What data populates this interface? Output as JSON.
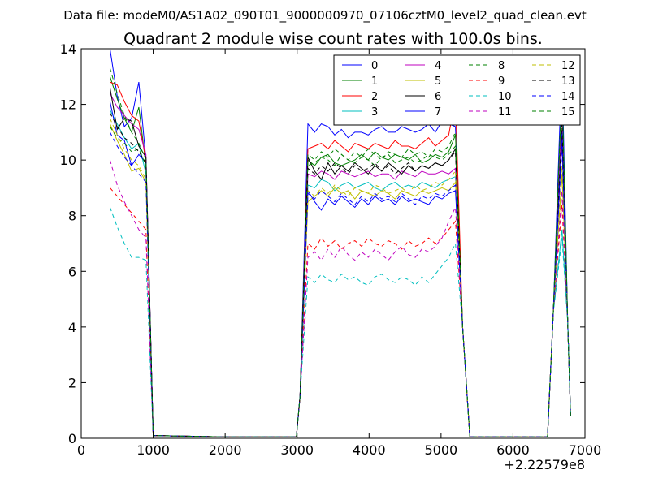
{
  "header": {
    "data_file": "Data file: modeM0/AS1A02_090T01_9000000970_07106cztM0_level2_quad_clean.evt"
  },
  "chart_data": {
    "type": "line",
    "title": "Quadrant 2 module wise count rates with 100.0s bins.",
    "xlabel": "",
    "ylabel": "",
    "x_offset_label": "+2.22579e8",
    "xlim": [
      0,
      7000
    ],
    "ylim": [
      0,
      14
    ],
    "xticks": [
      0,
      1000,
      2000,
      3000,
      4000,
      5000,
      6000,
      7000
    ],
    "xtick_labels": [
      "0",
      "1000",
      "2000",
      "3000",
      "4000",
      "5000",
      "6000",
      "7000"
    ],
    "yticks": [
      0,
      2,
      4,
      6,
      8,
      10,
      12,
      14
    ],
    "ytick_labels": [
      "0",
      "2",
      "4",
      "6",
      "8",
      "10",
      "12",
      "14"
    ],
    "grid": false,
    "legend_placement": "top-right",
    "legend_columns": 4,
    "segments": [
      {
        "x_start": 400,
        "count": 6,
        "drop_x": [
          1000
        ]
      },
      {
        "x_start": 3000,
        "count": 23,
        "rise_x": [
          3000
        ]
      },
      {
        "x_start": 5300,
        "count": 2,
        "tail": true
      },
      {
        "x_start": 6500,
        "count": 4
      }
    ],
    "series": [
      {
        "name": "0",
        "color": "#0000ff",
        "dash": "solid",
        "values": [
          [
            400,
            14.0
          ],
          [
            500,
            12.3
          ],
          [
            600,
            11.2
          ],
          [
            700,
            11.5
          ],
          [
            800,
            12.8
          ],
          [
            900,
            10.0
          ],
          [
            1000,
            0.1
          ]
        ],
        "plateau": [
          11.3,
          11.0,
          11.3,
          11.2,
          10.9,
          11.1,
          10.8,
          11.0,
          11.0,
          10.9,
          11.1,
          11.2,
          11.0,
          11.0,
          11.2,
          11.1,
          11.0,
          11.1,
          11.3,
          11.0,
          11.4,
          11.3,
          11.2
        ]
      },
      {
        "name": "1",
        "color": "#008000",
        "dash": "solid",
        "values": [
          [
            400,
            13.0
          ],
          [
            500,
            12.2
          ],
          [
            600,
            11.5
          ],
          [
            700,
            11.0
          ],
          [
            800,
            11.9
          ],
          [
            900,
            9.8
          ],
          [
            1000,
            0.1
          ]
        ],
        "plateau": [
          10.0,
          9.8,
          10.1,
          10.2,
          9.9,
          9.8,
          9.9,
          10.0,
          10.2,
          10.0,
          10.3,
          10.1,
          10.0,
          10.2,
          10.1,
          10.0,
          10.2,
          9.9,
          10.0,
          10.2,
          10.1,
          10.3,
          10.9
        ]
      },
      {
        "name": "2",
        "color": "#ff0000",
        "dash": "solid",
        "values": [
          [
            400,
            12.8
          ],
          [
            500,
            12.7
          ],
          [
            600,
            12.1
          ],
          [
            700,
            11.6
          ],
          [
            800,
            11.4
          ],
          [
            900,
            10.0
          ],
          [
            1000,
            0.1
          ]
        ],
        "plateau": [
          10.4,
          10.5,
          10.6,
          10.4,
          10.7,
          10.5,
          10.3,
          10.6,
          10.5,
          10.4,
          10.6,
          10.5,
          10.4,
          10.7,
          10.5,
          10.5,
          10.4,
          10.6,
          10.8,
          10.5,
          10.7,
          10.9,
          12.2
        ]
      },
      {
        "name": "3",
        "color": "#00bfbf",
        "dash": "solid",
        "values": [
          [
            400,
            11.8
          ],
          [
            500,
            11.3
          ],
          [
            600,
            10.8
          ],
          [
            700,
            10.4
          ],
          [
            800,
            10.6
          ],
          [
            900,
            9.5
          ],
          [
            1000,
            0.1
          ]
        ],
        "plateau": [
          9.1,
          9.0,
          9.3,
          9.2,
          8.9,
          9.1,
          9.2,
          9.0,
          9.1,
          9.2,
          9.0,
          8.9,
          9.1,
          9.2,
          9.0,
          9.1,
          9.0,
          9.2,
          9.1,
          9.0,
          9.2,
          9.3,
          9.4
        ]
      },
      {
        "name": "4",
        "color": "#bf00bf",
        "dash": "solid",
        "values": [
          [
            400,
            12.4
          ],
          [
            500,
            11.9
          ],
          [
            600,
            11.6
          ],
          [
            700,
            11.3
          ],
          [
            800,
            11.1
          ],
          [
            900,
            10.2
          ],
          [
            1000,
            0.1
          ]
        ],
        "plateau": [
          9.5,
          9.4,
          9.6,
          9.5,
          9.3,
          9.6,
          9.5,
          9.4,
          9.5,
          9.6,
          9.4,
          9.5,
          9.5,
          9.3,
          9.6,
          9.5,
          9.4,
          9.6,
          9.5,
          9.5,
          9.6,
          9.5,
          9.7
        ]
      },
      {
        "name": "5",
        "color": "#bfbf00",
        "dash": "solid",
        "values": [
          [
            400,
            11.3
          ],
          [
            500,
            10.7
          ],
          [
            600,
            10.2
          ],
          [
            700,
            9.6
          ],
          [
            800,
            9.7
          ],
          [
            900,
            9.2
          ],
          [
            1000,
            0.1
          ]
        ],
        "plateau": [
          8.5,
          8.7,
          8.9,
          8.7,
          9.0,
          8.8,
          8.9,
          8.6,
          8.9,
          8.8,
          8.7,
          8.9,
          8.8,
          8.6,
          8.9,
          8.8,
          8.7,
          8.9,
          8.8,
          8.9,
          9.0,
          8.9,
          9.2
        ]
      },
      {
        "name": "6",
        "color": "#000000",
        "dash": "solid",
        "values": [
          [
            400,
            12.6
          ],
          [
            500,
            11.1
          ],
          [
            600,
            11.5
          ],
          [
            700,
            11.4
          ],
          [
            800,
            10.5
          ],
          [
            900,
            10.1
          ],
          [
            1000,
            0.1
          ]
        ],
        "plateau": [
          10.1,
          9.6,
          9.3,
          9.9,
          9.5,
          9.8,
          9.6,
          9.9,
          9.7,
          9.5,
          9.8,
          9.6,
          9.9,
          9.7,
          9.5,
          9.8,
          9.6,
          9.8,
          9.7,
          9.9,
          9.8,
          10.0,
          10.4
        ]
      },
      {
        "name": "7",
        "color": "#0000ff",
        "dash": "solid",
        "values": [
          [
            400,
            12.1
          ],
          [
            500,
            10.9
          ],
          [
            600,
            10.7
          ],
          [
            700,
            9.8
          ],
          [
            800,
            10.2
          ],
          [
            900,
            9.9
          ],
          [
            1000,
            0.1
          ]
        ],
        "plateau": [
          8.9,
          8.5,
          8.2,
          8.6,
          8.4,
          8.7,
          8.5,
          8.3,
          8.6,
          8.4,
          8.7,
          8.5,
          8.6,
          8.4,
          8.7,
          8.5,
          8.6,
          8.5,
          8.4,
          8.7,
          8.6,
          8.8,
          8.9
        ]
      },
      {
        "name": "8",
        "color": "#008000",
        "dash": "dashed",
        "values": [
          [
            400,
            11.2
          ],
          [
            500,
            10.8
          ],
          [
            600,
            10.6
          ],
          [
            700,
            10.3
          ],
          [
            800,
            10.4
          ],
          [
            900,
            9.8
          ],
          [
            1000,
            0.1
          ]
        ],
        "plateau": [
          9.8,
          9.9,
          10.1,
          10.0,
          9.8,
          10.2,
          10.0,
          9.9,
          10.1,
          10.0,
          9.8,
          10.1,
          10.2,
          9.9,
          10.0,
          10.1,
          9.9,
          10.0,
          10.2,
          10.1,
          10.0,
          10.2,
          10.5
        ]
      },
      {
        "name": "9",
        "color": "#ff0000",
        "dash": "dashed",
        "values": [
          [
            400,
            9.0
          ],
          [
            500,
            8.7
          ],
          [
            600,
            8.4
          ],
          [
            700,
            8.1
          ],
          [
            800,
            7.8
          ],
          [
            900,
            7.5
          ],
          [
            1000,
            0.1
          ]
        ],
        "plateau": [
          7.0,
          6.8,
          7.2,
          6.9,
          7.1,
          6.8,
          7.0,
          7.1,
          6.9,
          7.2,
          7.0,
          6.9,
          7.1,
          7.0,
          6.8,
          7.1,
          6.9,
          7.0,
          7.2,
          7.0,
          7.2,
          7.5,
          7.8
        ]
      },
      {
        "name": "10",
        "color": "#00bfbf",
        "dash": "dashed",
        "values": [
          [
            400,
            8.3
          ],
          [
            500,
            7.6
          ],
          [
            600,
            7.0
          ],
          [
            700,
            6.5
          ],
          [
            800,
            6.5
          ],
          [
            900,
            6.4
          ],
          [
            1000,
            0.1
          ]
        ],
        "plateau": [
          5.8,
          5.6,
          5.9,
          5.7,
          5.6,
          5.9,
          5.7,
          5.8,
          5.6,
          5.5,
          5.8,
          5.9,
          5.7,
          5.6,
          5.8,
          5.7,
          5.5,
          5.8,
          5.6,
          5.9,
          6.2,
          6.5,
          7.0
        ]
      },
      {
        "name": "11",
        "color": "#bf00bf",
        "dash": "dashed",
        "values": [
          [
            400,
            10.0
          ],
          [
            500,
            9.1
          ],
          [
            600,
            8.5
          ],
          [
            700,
            8.0
          ],
          [
            800,
            7.5
          ],
          [
            900,
            7.2
          ],
          [
            1000,
            0.1
          ]
        ],
        "plateau": [
          6.5,
          6.7,
          6.4,
          6.8,
          6.5,
          6.9,
          6.6,
          6.4,
          6.7,
          6.5,
          6.8,
          6.6,
          6.4,
          6.7,
          6.9,
          6.6,
          6.5,
          6.8,
          6.7,
          6.9,
          7.2,
          7.8,
          8.3
        ]
      },
      {
        "name": "12",
        "color": "#bfbf00",
        "dash": "dashed",
        "values": [
          [
            400,
            11.5
          ],
          [
            500,
            10.9
          ],
          [
            600,
            10.4
          ],
          [
            700,
            10.0
          ],
          [
            800,
            9.8
          ],
          [
            900,
            9.3
          ],
          [
            1000,
            0.1
          ]
        ],
        "plateau": [
          8.9,
          8.7,
          9.0,
          8.8,
          9.1,
          8.9,
          8.7,
          9.0,
          8.9,
          8.8,
          9.1,
          9.0,
          8.8,
          8.9,
          9.0,
          8.8,
          9.1,
          8.9,
          9.0,
          9.2,
          9.1,
          9.3,
          9.6
        ]
      },
      {
        "name": "13",
        "color": "#000000",
        "dash": "dashed",
        "values": [
          [
            400,
            11.7
          ],
          [
            500,
            11.2
          ],
          [
            600,
            10.8
          ],
          [
            700,
            10.6
          ],
          [
            800,
            10.3
          ],
          [
            900,
            9.9
          ],
          [
            1000,
            0.1
          ]
        ],
        "plateau": [
          9.7,
          9.5,
          9.8,
          9.6,
          9.9,
          9.7,
          9.5,
          9.8,
          9.6,
          9.7,
          9.9,
          9.6,
          9.8,
          9.5,
          9.7,
          9.9,
          9.6,
          9.8,
          9.7,
          9.9,
          9.8,
          10.0,
          10.3
        ]
      },
      {
        "name": "14",
        "color": "#0000ff",
        "dash": "dashed",
        "values": [
          [
            400,
            11.0
          ],
          [
            500,
            10.5
          ],
          [
            600,
            10.1
          ],
          [
            700,
            9.8
          ],
          [
            800,
            9.5
          ],
          [
            900,
            9.2
          ],
          [
            1000,
            0.1
          ]
        ],
        "plateau": [
          8.8,
          8.6,
          8.9,
          8.7,
          8.5,
          8.8,
          8.6,
          8.4,
          8.7,
          8.5,
          8.8,
          8.6,
          8.7,
          8.5,
          8.8,
          8.6,
          8.4,
          8.7,
          8.6,
          8.8,
          8.7,
          8.9,
          9.1
        ]
      },
      {
        "name": "15",
        "color": "#008000",
        "dash": "dashed",
        "values": [
          [
            400,
            13.3
          ],
          [
            500,
            12.4
          ],
          [
            600,
            11.6
          ],
          [
            700,
            11.0
          ],
          [
            800,
            10.6
          ],
          [
            900,
            10.0
          ],
          [
            1000,
            0.1
          ]
        ],
        "plateau": [
          10.2,
          10.0,
          10.3,
          10.1,
          10.4,
          10.2,
          10.0,
          10.3,
          10.1,
          10.4,
          10.2,
          10.0,
          10.3,
          10.2,
          10.1,
          10.4,
          10.2,
          10.3,
          10.1,
          10.4,
          10.3,
          10.5,
          11.0
        ]
      }
    ]
  }
}
